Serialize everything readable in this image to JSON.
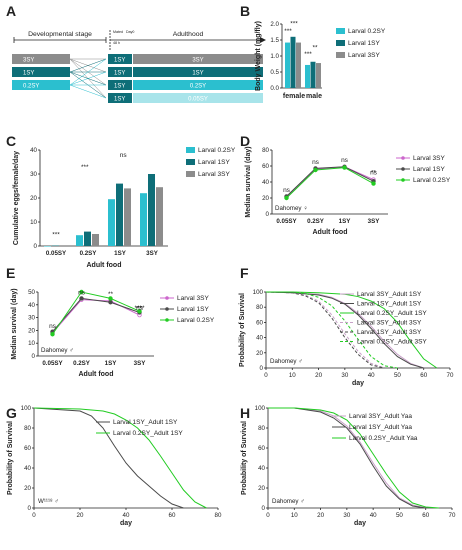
{
  "colors": {
    "c_02": "#2bbfcf",
    "c_1": "#0e6e78",
    "c_3": "#8c8c8c",
    "dark": "#4a4a4a",
    "lavender": "#c8a2c8",
    "magenta": "#cc66cc",
    "green": "#22cc22",
    "light_cyan": "#a8e4ea"
  },
  "panelA": {
    "letter": "A",
    "stage1": "Developmental stage",
    "stage2": "Adulthood",
    "mated": "Mated",
    "mated_time": "48 h",
    "day0": "Day0",
    "larval": [
      "3SY",
      "1SY",
      "0.2SY"
    ],
    "adult_left": [
      "1SY",
      "1SY",
      "1SY",
      "1SY"
    ],
    "adult_right": [
      "3SY",
      "1SY",
      "0.2SY",
      "0.05SY"
    ]
  },
  "chart_data": [
    {
      "id": "B",
      "type": "bar",
      "ylabel": "Body Weight (mg/fly)",
      "ylim": [
        0,
        2.0
      ],
      "yticks": [
        "0.0",
        "0.5",
        "1.0",
        "1.5",
        "2.0"
      ],
      "categories": [
        "female",
        "male"
      ],
      "series": [
        {
          "name": "Larval 0.2SY",
          "values": [
            1.42,
            0.72
          ]
        },
        {
          "name": "Larval 1SY",
          "values": [
            1.6,
            0.82
          ]
        },
        {
          "name": "Larval 3SY",
          "values": [
            1.42,
            0.78
          ]
        }
      ],
      "sig": [
        "***",
        "***",
        "***",
        "**"
      ]
    },
    {
      "id": "C",
      "type": "bar",
      "ylabel": "Cumulative eggs/female/day",
      "xlabel": "Adult food",
      "ylim": [
        0,
        40
      ],
      "yticks": [
        "0",
        "10",
        "20",
        "30",
        "40"
      ],
      "categories": [
        "0.05SY",
        "0.2SY",
        "1SY",
        "3SY"
      ],
      "series": [
        {
          "name": "Larval 0.2SY",
          "values": [
            0,
            4.5,
            19.5,
            22
          ]
        },
        {
          "name": "Larval 1SY",
          "values": [
            0.2,
            6,
            26,
            30
          ]
        },
        {
          "name": "Larval 3SY",
          "values": [
            0.3,
            5,
            24,
            24.5
          ]
        }
      ],
      "sig": [
        "***",
        "***",
        "ns"
      ]
    },
    {
      "id": "D",
      "type": "line",
      "ylabel": "Median survival (day)",
      "xlabel": "Adult food",
      "ylim": [
        0,
        80
      ],
      "yticks": [
        "0",
        "20",
        "40",
        "60",
        "80"
      ],
      "categories": [
        "0.05SY",
        "0.2SY",
        "1SY",
        "3SY"
      ],
      "annotation": "Dahomey ♀",
      "series": [
        {
          "name": "Larval 3SY",
          "values": [
            21,
            56,
            59,
            43
          ]
        },
        {
          "name": "Larval 1SY",
          "values": [
            22,
            57,
            59,
            41
          ]
        },
        {
          "name": "Larval 0.2SY",
          "values": [
            20,
            55,
            58,
            38
          ]
        }
      ],
      "sig": [
        "ns",
        "ns",
        "ns",
        "ns",
        "**"
      ]
    },
    {
      "id": "E",
      "type": "line",
      "ylabel": "Median survival (day)",
      "xlabel": "Adult food",
      "ylim": [
        0,
        50
      ],
      "yticks": [
        "0",
        "10",
        "20",
        "30",
        "40",
        "50"
      ],
      "categories": [
        "0.05SY",
        "0.2SY",
        "1SY",
        "3SY"
      ],
      "annotation": "Dahomey ♂",
      "series": [
        {
          "name": "Larval 3SY",
          "values": [
            18,
            44,
            43,
            32
          ]
        },
        {
          "name": "Larval 1SY",
          "values": [
            19,
            45,
            42,
            34
          ]
        },
        {
          "name": "Larval 0.2SY",
          "values": [
            17,
            50,
            45,
            35
          ]
        }
      ],
      "sig": [
        "ns",
        "ns",
        "**",
        "**",
        "**",
        "****",
        "ns"
      ]
    },
    {
      "id": "F",
      "type": "line",
      "ylabel": "Probability of Survival",
      "xlabel": "day",
      "ylim": [
        0,
        100
      ],
      "yticks": [
        "0",
        "20",
        "40",
        "60",
        "80",
        "100"
      ],
      "xticks": [
        "0",
        "10",
        "20",
        "30",
        "40",
        "50",
        "60",
        "70"
      ],
      "annotation": "Dahomey ♂",
      "series": [
        {
          "name": "Larval 3SY_Adult 1SY",
          "x": [
            0,
            10,
            20,
            25,
            30,
            35,
            40,
            45,
            50,
            55,
            60
          ],
          "values": [
            100,
            99,
            97,
            93,
            85,
            72,
            55,
            35,
            18,
            6,
            0
          ]
        },
        {
          "name": "Larval 1SY_Adult 1SY",
          "x": [
            0,
            10,
            20,
            25,
            30,
            35,
            40,
            45,
            50,
            55,
            60
          ],
          "values": [
            100,
            99,
            96,
            92,
            84,
            70,
            52,
            32,
            15,
            5,
            0
          ]
        },
        {
          "name": "Larval 0.2SY_Adult 1SY",
          "x": [
            0,
            10,
            20,
            30,
            35,
            40,
            45,
            50,
            55,
            60,
            65
          ],
          "values": [
            100,
            100,
            99,
            97,
            94,
            88,
            78,
            60,
            35,
            12,
            0
          ]
        },
        {
          "name": "Larval 3SY_Adult 3SY",
          "x": [
            0,
            10,
            15,
            20,
            25,
            30,
            35,
            40,
            45
          ],
          "values": [
            100,
            99,
            96,
            88,
            70,
            45,
            22,
            6,
            0
          ]
        },
        {
          "name": "Larval 1SY_Adult 3SY",
          "x": [
            0,
            10,
            15,
            20,
            25,
            30,
            35,
            40,
            45
          ],
          "values": [
            100,
            99,
            95,
            86,
            66,
            40,
            18,
            4,
            0
          ]
        },
        {
          "name": "Larval 0.2SY_Adult 3SY",
          "x": [
            0,
            10,
            15,
            20,
            25,
            30,
            35,
            40,
            45,
            50
          ],
          "values": [
            100,
            100,
            98,
            93,
            82,
            62,
            38,
            15,
            3,
            0
          ]
        }
      ]
    },
    {
      "id": "G",
      "type": "line",
      "ylabel": "Probability of Survival",
      "xlabel": "day",
      "ylim": [
        0,
        100
      ],
      "yticks": [
        "0",
        "20",
        "40",
        "60",
        "80",
        "100"
      ],
      "xticks": [
        "0",
        "20",
        "40",
        "60",
        "80"
      ],
      "annotation": "W¹¹¹⁸ ♂",
      "series": [
        {
          "name": "Larval 1SY_Adult 1SY",
          "x": [
            0,
            20,
            25,
            30,
            35,
            40,
            45,
            50,
            55,
            60,
            65
          ],
          "values": [
            100,
            97,
            92,
            80,
            62,
            45,
            32,
            22,
            12,
            4,
            0
          ]
        },
        {
          "name": "Larval 0.2SY_Adult 1SY",
          "x": [
            0,
            20,
            30,
            35,
            40,
            45,
            50,
            55,
            60,
            65,
            70,
            75
          ],
          "values": [
            100,
            99,
            97,
            94,
            88,
            80,
            68,
            52,
            35,
            18,
            6,
            0
          ]
        }
      ]
    },
    {
      "id": "H",
      "type": "line",
      "ylabel": "Probability of Survival",
      "xlabel": "day",
      "ylim": [
        0,
        100
      ],
      "yticks": [
        "0",
        "20",
        "40",
        "60",
        "80",
        "100"
      ],
      "xticks": [
        "0",
        "10",
        "20",
        "30",
        "40",
        "50",
        "60",
        "70"
      ],
      "annotation": "Dahomey ♂",
      "series": [
        {
          "name": "Larval 3SY_Adult Yaa",
          "x": [
            0,
            10,
            20,
            25,
            30,
            35,
            40,
            45,
            50,
            55,
            60
          ],
          "values": [
            100,
            100,
            97,
            92,
            82,
            66,
            45,
            25,
            10,
            3,
            0
          ]
        },
        {
          "name": "Larval 1SY_Adult Yaa",
          "x": [
            0,
            10,
            20,
            25,
            30,
            35,
            40,
            45,
            50,
            55,
            60
          ],
          "values": [
            100,
            100,
            96,
            90,
            80,
            64,
            42,
            22,
            9,
            2,
            0
          ]
        },
        {
          "name": "Larval 0.2SY_Adult Yaa",
          "x": [
            0,
            10,
            20,
            25,
            30,
            35,
            40,
            45,
            50,
            55,
            60,
            65
          ],
          "values": [
            100,
            100,
            98,
            95,
            88,
            74,
            54,
            34,
            16,
            5,
            1,
            0
          ]
        }
      ]
    }
  ]
}
